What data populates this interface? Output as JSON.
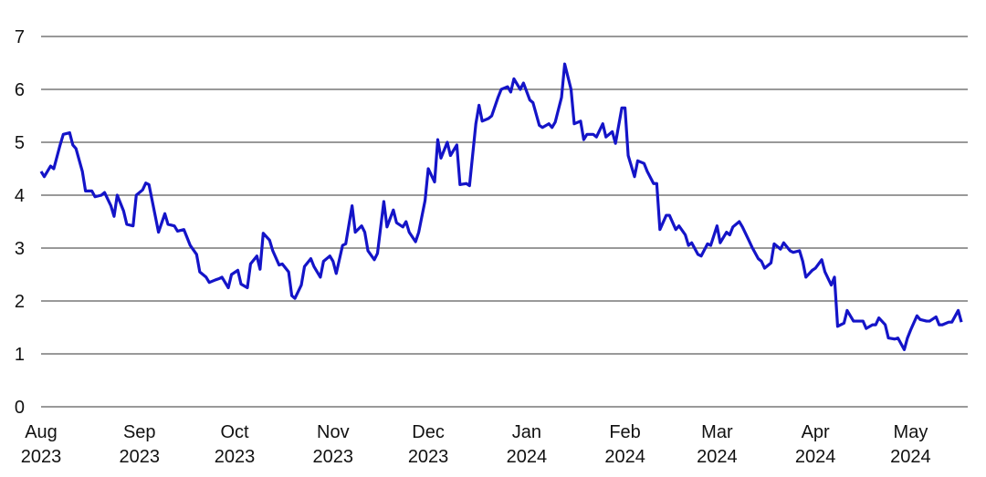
{
  "chart_data": {
    "type": "line",
    "x": [
      0,
      1,
      3,
      4,
      6,
      7,
      9,
      10,
      11,
      13,
      14,
      16,
      17,
      19,
      20,
      22,
      23,
      24,
      26,
      27,
      29,
      30,
      32,
      33,
      34,
      36,
      37,
      39,
      40,
      42,
      43,
      45,
      46,
      47,
      49,
      50,
      52,
      53,
      55,
      56,
      57,
      59,
      60,
      62,
      63,
      65,
      66,
      68,
      69,
      70,
      72,
      73,
      75,
      76,
      78,
      79,
      80,
      82,
      83,
      85,
      86,
      88,
      89,
      91,
      92,
      93,
      95,
      96,
      98,
      99,
      101,
      102,
      103,
      105,
      106,
      108,
      109,
      111,
      112,
      114,
      115,
      116,
      118,
      119,
      121,
      122,
      124,
      125,
      126,
      128,
      129,
      131,
      132,
      134,
      135,
      137,
      138,
      139,
      141,
      142,
      144,
      145,
      147,
      148,
      149,
      151,
      152,
      154,
      155,
      157,
      158,
      160,
      161,
      162,
      164,
      165,
      167,
      168,
      170,
      171,
      172,
      174,
      175,
      177,
      178,
      180,
      181,
      183,
      184,
      185,
      187,
      188,
      190,
      191,
      193,
      194,
      195,
      197,
      198,
      200,
      201,
      203,
      204,
      205,
      207,
      208,
      210,
      211,
      213,
      214,
      216,
      217,
      218,
      220,
      221,
      223,
      224,
      226,
      227,
      228,
      230,
      231,
      233,
      234,
      236,
      237,
      239,
      240,
      241,
      243,
      244,
      246,
      247,
      249,
      250,
      251,
      253,
      254,
      256,
      257,
      259,
      260,
      262,
      263,
      264,
      266,
      267,
      269,
      270,
      272,
      273,
      274,
      276,
      277,
      279,
      280,
      282,
      283,
      284,
      286,
      287,
      289,
      290
    ],
    "values": [
      4.45,
      4.35,
      4.55,
      4.5,
      4.95,
      5.15,
      5.18,
      4.95,
      4.88,
      4.45,
      4.08,
      4.08,
      3.97,
      4.0,
      4.05,
      3.8,
      3.6,
      4.0,
      3.7,
      3.45,
      3.42,
      4.0,
      4.1,
      4.23,
      4.2,
      3.6,
      3.3,
      3.65,
      3.45,
      3.42,
      3.32,
      3.35,
      3.2,
      3.05,
      2.88,
      2.55,
      2.45,
      2.35,
      2.4,
      2.42,
      2.45,
      2.25,
      2.5,
      2.58,
      2.32,
      2.25,
      2.7,
      2.85,
      2.6,
      3.28,
      3.15,
      2.95,
      2.68,
      2.7,
      2.55,
      2.1,
      2.05,
      2.3,
      2.65,
      2.8,
      2.65,
      2.45,
      2.75,
      2.85,
      2.75,
      2.52,
      3.05,
      3.08,
      3.8,
      3.3,
      3.42,
      3.3,
      2.95,
      2.78,
      2.9,
      3.88,
      3.4,
      3.72,
      3.48,
      3.4,
      3.5,
      3.3,
      3.12,
      3.3,
      3.9,
      4.5,
      4.25,
      5.05,
      4.7,
      5.0,
      4.75,
      4.95,
      4.2,
      4.22,
      4.18,
      5.35,
      5.7,
      5.4,
      5.45,
      5.5,
      5.85,
      6.0,
      6.05,
      5.95,
      6.2,
      6.0,
      6.12,
      5.8,
      5.75,
      5.32,
      5.28,
      5.35,
      5.28,
      5.38,
      5.85,
      6.48,
      6.0,
      5.35,
      5.4,
      5.05,
      5.15,
      5.15,
      5.1,
      5.35,
      5.1,
      5.2,
      4.98,
      5.65,
      5.65,
      4.75,
      4.35,
      4.65,
      4.6,
      4.45,
      4.22,
      4.22,
      3.35,
      3.62,
      3.62,
      3.35,
      3.42,
      3.25,
      3.05,
      3.1,
      2.88,
      2.85,
      3.08,
      3.05,
      3.42,
      3.1,
      3.3,
      3.25,
      3.4,
      3.5,
      3.4,
      3.15,
      3.02,
      2.8,
      2.75,
      2.62,
      2.72,
      3.08,
      2.98,
      3.1,
      2.95,
      2.92,
      2.95,
      2.75,
      2.45,
      2.58,
      2.62,
      2.78,
      2.55,
      2.3,
      2.45,
      1.52,
      1.58,
      1.82,
      1.62,
      1.62,
      1.62,
      1.48,
      1.55,
      1.55,
      1.68,
      1.55,
      1.3,
      1.28,
      1.3,
      1.08,
      1.3,
      1.45,
      1.72,
      1.65,
      1.62,
      1.62,
      1.7,
      1.55,
      1.55,
      1.6,
      1.6,
      1.82,
      1.6
    ],
    "color": "#1414c8",
    "xlim": [
      0,
      292
    ],
    "xticks": [
      {
        "value": 0,
        "label": "Aug 2023"
      },
      {
        "value": 31,
        "label": "Sep 2023"
      },
      {
        "value": 61,
        "label": "Oct 2023"
      },
      {
        "value": 92,
        "label": "Nov 2023"
      },
      {
        "value": 122,
        "label": "Dec 2023"
      },
      {
        "value": 153,
        "label": "Jan 2024"
      },
      {
        "value": 184,
        "label": "Feb 2024"
      },
      {
        "value": 213,
        "label": "Mar 2024"
      },
      {
        "value": 244,
        "label": "Apr 2024"
      },
      {
        "value": 274,
        "label": "May 2024"
      }
    ],
    "ylim": [
      0,
      7
    ],
    "yticks": [
      0,
      1,
      2,
      3,
      4,
      5,
      6,
      7
    ],
    "grid": true
  }
}
